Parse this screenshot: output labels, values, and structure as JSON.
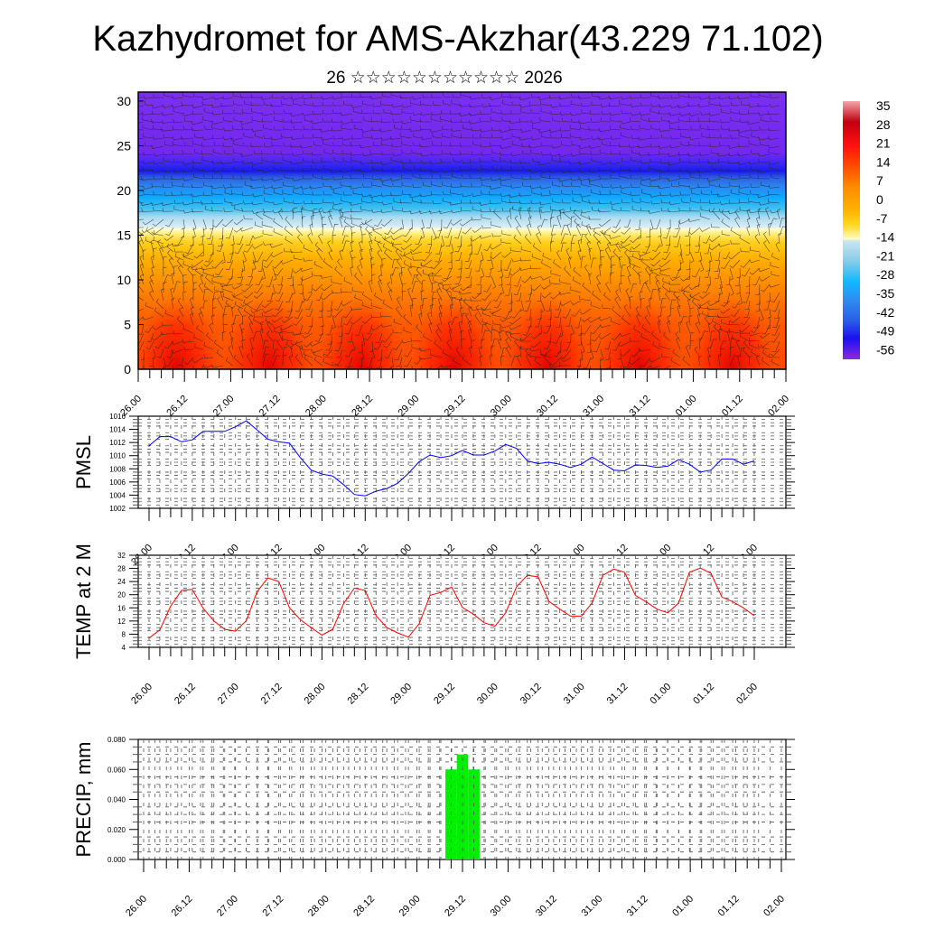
{
  "title": "Kazhydromet for AMS-Akzhar(43.229 71.102)",
  "subtitle": "26 ☆☆☆☆☆☆☆☆☆☆☆ 2026",
  "time_labels": [
    "26.00",
    "26.12",
    "27.00",
    "27.12",
    "28.00",
    "28.12",
    "29.00",
    "29.12",
    "30.00",
    "30.12",
    "31.00",
    "31.12",
    "01.00",
    "01.12",
    "02.00"
  ],
  "chart_data": [
    {
      "type": "heatmap",
      "name": "cross-section",
      "ylabel": "",
      "yticks": [
        0,
        5,
        10,
        15,
        20,
        25,
        30
      ],
      "ylim": [
        0,
        31
      ],
      "colorbar": {
        "labels": [
          "35",
          "28",
          "21",
          "14",
          "7",
          "0",
          "-7",
          "-14",
          "-21",
          "-28",
          "-35",
          "-42",
          "-49",
          "-56"
        ],
        "colors": [
          "#f4a6aa",
          "#c00010",
          "#ff1010",
          "#ff4a00",
          "#ff8a00",
          "#ffb000",
          "#ffd820",
          "#fffcc8",
          "#cce6f2",
          "#86cce8",
          "#10b8ff",
          "#2f8cf0",
          "#2a5ee6",
          "#1a10f0",
          "#8a2be2"
        ]
      },
      "overlay": "wind barbs"
    },
    {
      "type": "line",
      "name": "pmsl",
      "ylabel": "PMSL",
      "ylim": [
        1002,
        1016
      ],
      "yticks": [
        "1002",
        "1004",
        "1006",
        "1008",
        "1010",
        "1012",
        "1014",
        "1016"
      ],
      "step_hours": 3,
      "color": "#0000ff",
      "values": [
        1011.5,
        1012.9,
        1012.9,
        1012.1,
        1012.4,
        1013.7,
        1013.7,
        1013.7,
        1014.4,
        1015.3,
        1013.9,
        1012.5,
        1012.1,
        1011.9,
        1009.7,
        1007.8,
        1007.2,
        1006.9,
        1005.6,
        1004.1,
        1003.9,
        1004.6,
        1005.0,
        1005.8,
        1007.3,
        1009.1,
        1010.1,
        1009.7,
        1010.0,
        1010.8,
        1010.1,
        1010.1,
        1010.7,
        1011.7,
        1011.1,
        1009.2,
        1008.8,
        1009.0,
        1008.7,
        1008.2,
        1008.7,
        1009.8,
        1008.8,
        1007.8,
        1007.7,
        1008.6,
        1008.5,
        1008.2,
        1008.4,
        1009.4,
        1008.7,
        1007.5,
        1007.8,
        1009.5,
        1009.5,
        1008.7,
        1009.2
      ]
    },
    {
      "type": "line",
      "name": "temp2m",
      "ylabel": "TEMP at 2 M",
      "ylim": [
        4,
        32
      ],
      "yticks": [
        "4",
        "8",
        "12",
        "16",
        "20",
        "24",
        "28",
        "32"
      ],
      "step_hours": 3,
      "color": "#ff0000",
      "values": [
        6.8,
        9.3,
        16.5,
        21.3,
        21.6,
        15.9,
        12.0,
        9.5,
        8.9,
        12.1,
        20.9,
        25.1,
        24.0,
        16.0,
        12.4,
        10.0,
        7.7,
        9.5,
        17.3,
        22.0,
        21.3,
        13.6,
        10.0,
        8.4,
        7.1,
        11.2,
        19.8,
        20.7,
        22.3,
        16.1,
        14.1,
        11.5,
        10.4,
        14.5,
        22.4,
        25.9,
        25.4,
        18.0,
        15.6,
        13.5,
        13.5,
        17.5,
        25.9,
        27.8,
        26.8,
        19.8,
        17.8,
        15.6,
        14.5,
        17.5,
        26.8,
        28.1,
        26.5,
        19.3,
        17.9,
        16.0,
        13.6
      ]
    },
    {
      "type": "bar",
      "name": "precip",
      "ylabel": "PRECIP, mm",
      "ylim": [
        0,
        0.08
      ],
      "yticks": [
        "0.000",
        "0.020",
        "0.040",
        "0.060",
        "0.080"
      ],
      "step_hours": 3,
      "color": "#00ee00",
      "bars": [
        {
          "index": 27,
          "value": 0.06
        },
        {
          "index": 28,
          "value": 0.07
        },
        {
          "index": 29,
          "value": 0.06
        }
      ]
    }
  ]
}
